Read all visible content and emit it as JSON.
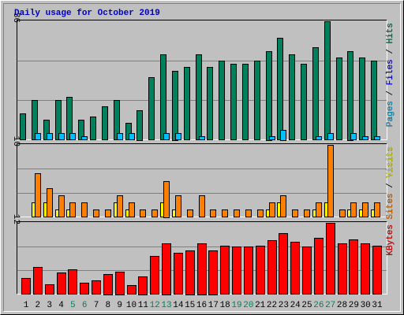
{
  "title": "Daily usage for October 2019",
  "legend_separator": "/",
  "categories": [
    "1",
    "2",
    "3",
    "4",
    "5",
    "6",
    "7",
    "8",
    "9",
    "10",
    "11",
    "12",
    "13",
    "14",
    "15",
    "16",
    "17",
    "18",
    "19",
    "20",
    "21",
    "22",
    "23",
    "24",
    "25",
    "26",
    "27",
    "28",
    "29",
    "30",
    "31"
  ],
  "category_colors": [
    "#000000",
    "#000000",
    "#000000",
    "#000000",
    "#00805c",
    "#00805c",
    "#000000",
    "#000000",
    "#000000",
    "#000000",
    "#000000",
    "#00805c",
    "#00805c",
    "#000000",
    "#000000",
    "#000000",
    "#000000",
    "#000000",
    "#00805c",
    "#00805c",
    "#000000",
    "#000000",
    "#000000",
    "#000000",
    "#000000",
    "#00805c",
    "#00805c",
    "#000000",
    "#000000",
    "#000000",
    "#000000"
  ],
  "chart_data": [
    {
      "type": "bar",
      "ylim": [
        0,
        36
      ],
      "yticks": [
        36
      ],
      "gridlines": [
        12,
        24
      ],
      "series": [
        {
          "name": "Hits",
          "color": "#00805c",
          "values": [
            8,
            12,
            6,
            12,
            13,
            6,
            7,
            10,
            12,
            5,
            9,
            19,
            26,
            21,
            22,
            26,
            22,
            24,
            23,
            23,
            24,
            27,
            31,
            26,
            23,
            28,
            36,
            25,
            27,
            25,
            24
          ]
        },
        {
          "name": "Files",
          "color": "#0000ff",
          "values": [
            0,
            0,
            0,
            0,
            0,
            0,
            0,
            0,
            0,
            0,
            0,
            0,
            0,
            0,
            0,
            0,
            0,
            0,
            0,
            0,
            0,
            0,
            0,
            0,
            0,
            0,
            0,
            0,
            0,
            0,
            0
          ]
        },
        {
          "name": "Pages",
          "color": "#00c0ff",
          "values": [
            0,
            2,
            2,
            2,
            2,
            1,
            0,
            0,
            2,
            2,
            0,
            0,
            2,
            2,
            0,
            1,
            0,
            0,
            0,
            0,
            0,
            1,
            3,
            0,
            0,
            1,
            2,
            0,
            2,
            1,
            1
          ]
        }
      ]
    },
    {
      "type": "bar",
      "ylim": [
        0,
        10
      ],
      "yticks": [
        10
      ],
      "gridlines": [
        3.33,
        6.67
      ],
      "series": [
        {
          "name": "Visits",
          "color": "#ffff00",
          "values": [
            0,
            2,
            2,
            1,
            1,
            0,
            0,
            0,
            2,
            1,
            0,
            0,
            2,
            1,
            0,
            0,
            0,
            0,
            0,
            0,
            0,
            1,
            2,
            0,
            0,
            1,
            2,
            0,
            1,
            1,
            1
          ]
        },
        {
          "name": "Sites",
          "color": "#ff8000",
          "values": [
            0,
            6,
            4,
            3,
            2,
            2,
            1,
            1,
            3,
            2,
            1,
            1,
            5,
            3,
            1,
            3,
            1,
            1,
            1,
            1,
            1,
            2,
            3,
            1,
            1,
            2,
            10,
            1,
            2,
            2,
            2
          ]
        }
      ]
    },
    {
      "type": "bar",
      "ylim": [
        0,
        12
      ],
      "yticks": [
        12
      ],
      "gridlines": [
        4,
        8
      ],
      "series": [
        {
          "name": "KBytes",
          "color": "#ff0000",
          "values": [
            2.7,
            4.5,
            1.6,
            3.6,
            4.1,
            1.9,
            2.3,
            3.4,
            3.8,
            1.5,
            3,
            6.4,
            8.6,
            6.9,
            7.4,
            8.6,
            7.4,
            8.1,
            8,
            8,
            8.1,
            9.1,
            10.3,
            8.8,
            8,
            9.5,
            12,
            8.5,
            9.2,
            8.5,
            8.1
          ]
        }
      ]
    }
  ]
}
